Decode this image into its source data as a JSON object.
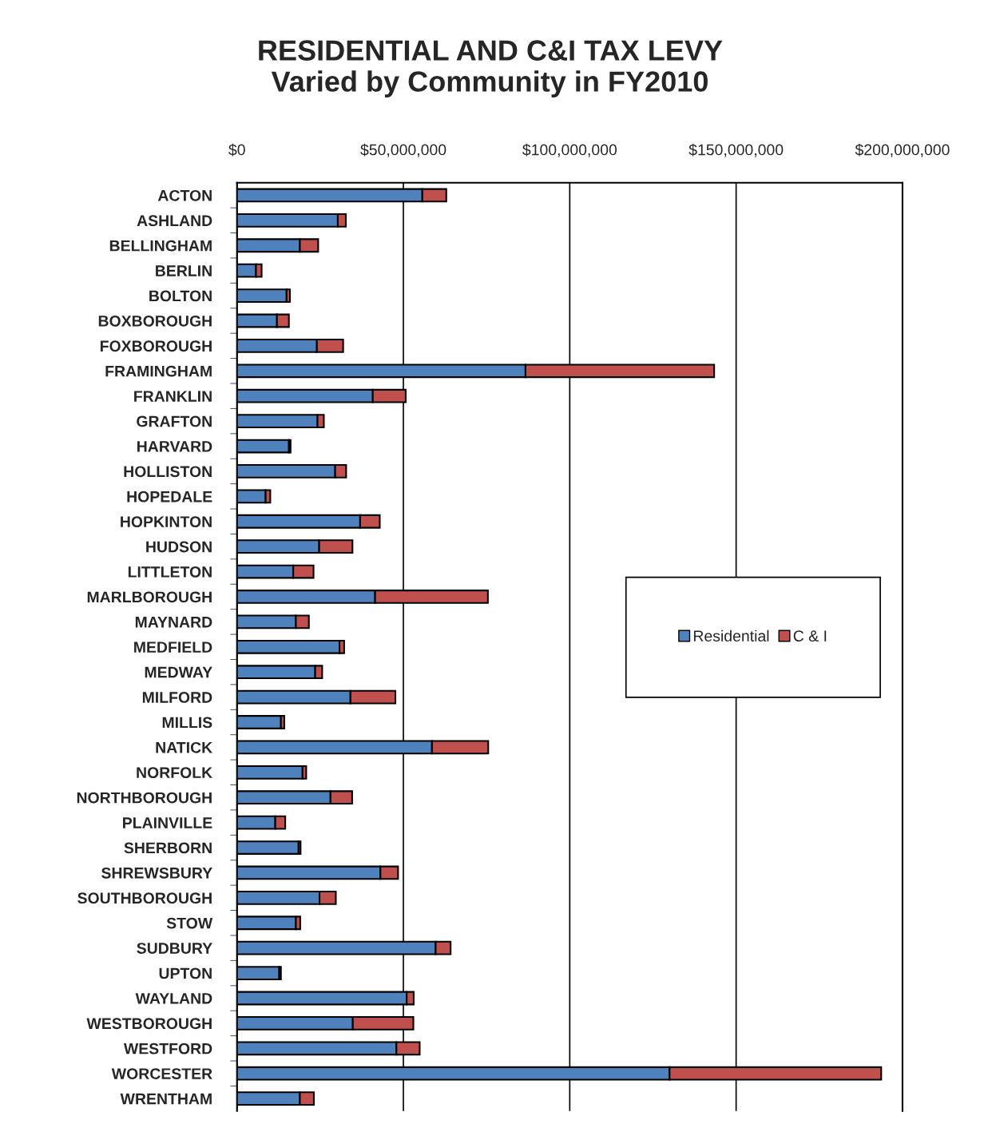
{
  "chart_data": {
    "type": "bar",
    "orientation": "horizontal",
    "stacked": true,
    "title": "RESIDENTIAL AND C&I TAX LEVY\nVaried by Community in FY2010",
    "categories": [
      "ACTON",
      "ASHLAND",
      "BELLINGHAM",
      "BERLIN",
      "BOLTON",
      "BOXBOROUGH",
      "FOXBOROUGH",
      "FRAMINGHAM",
      "FRANKLIN",
      "GRAFTON",
      "HARVARD",
      "HOLLISTON",
      "HOPEDALE",
      "HOPKINTON",
      "HUDSON",
      "LITTLETON",
      "MARLBOROUGH",
      "MAYNARD",
      "MEDFIELD",
      "MEDWAY",
      "MILFORD",
      "MILLIS",
      "NATICK",
      "NORFOLK",
      "NORTHBOROUGH",
      "PLAINVILLE",
      "SHERBORN",
      "SHREWSBURY",
      "SOUTHBOROUGH",
      "STOW",
      "SUDBURY",
      "UPTON",
      "WAYLAND",
      "WESTBOROUGH",
      "WESTFORD",
      "WORCESTER",
      "WRENTHAM"
    ],
    "series": [
      {
        "name": "Residential",
        "color": "#4f81bd",
        "values": [
          55700000,
          30300000,
          18900000,
          5700000,
          14900000,
          12000000,
          24000000,
          86700000,
          40800000,
          24200000,
          15600000,
          29500000,
          8600000,
          37000000,
          24700000,
          16900000,
          41500000,
          17700000,
          30800000,
          23500000,
          34100000,
          13200000,
          58600000,
          19700000,
          28100000,
          11500000,
          18500000,
          43100000,
          24800000,
          17700000,
          59700000,
          12700000,
          51000000,
          34800000,
          47900000,
          130000000,
          18900000
        ]
      },
      {
        "name": "C & I",
        "color": "#c0504d",
        "values": [
          7200000,
          2400000,
          5500000,
          1700000,
          1000000,
          3600000,
          7900000,
          56700000,
          9900000,
          1900000,
          500000,
          3300000,
          1400000,
          5900000,
          10000000,
          6100000,
          33900000,
          3900000,
          1400000,
          2100000,
          13500000,
          1000000,
          16900000,
          1100000,
          6500000,
          3000000,
          600000,
          5300000,
          4900000,
          1300000,
          4500000,
          500000,
          2100000,
          18200000,
          7000000,
          63600000,
          4200000
        ]
      }
    ],
    "xlim": [
      0,
      200000000
    ],
    "xticks": [
      {
        "value": 0,
        "label": "$0"
      },
      {
        "value": 50000000,
        "label": "$50,000,000"
      },
      {
        "value": 100000000,
        "label": "$100,000,000"
      },
      {
        "value": 150000000,
        "label": "$150,000,000"
      },
      {
        "value": 200000000,
        "label": "$200,000,000"
      }
    ],
    "grid": "x",
    "legend": "right"
  }
}
